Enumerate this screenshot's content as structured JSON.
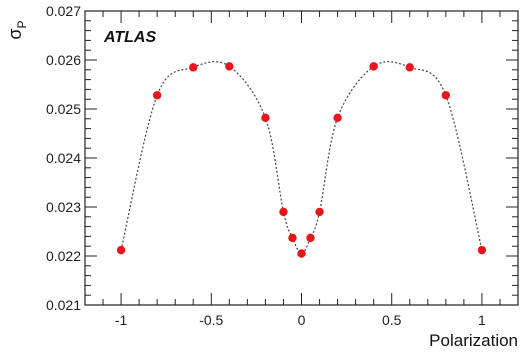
{
  "chart_data": {
    "type": "scatter",
    "title": "",
    "experiment_label": "ATLAS",
    "xlabel": "Polarization",
    "ylabel": {
      "symbol": "σ",
      "subscript": "P"
    },
    "xlim": [
      -1.2,
      1.2
    ],
    "ylim": [
      0.021,
      0.027
    ],
    "x_ticks": [
      -1,
      -0.5,
      0,
      0.5,
      1
    ],
    "x_tick_labels": [
      "-1",
      "-0.5",
      "0",
      "0.5",
      "1"
    ],
    "y_ticks": [
      0.021,
      0.022,
      0.023,
      0.024,
      0.025,
      0.026,
      0.027
    ],
    "y_tick_labels": [
      "0.021",
      "0.022",
      "0.023",
      "0.024",
      "0.025",
      "0.026",
      "0.027"
    ],
    "grid": false,
    "series": [
      {
        "x": [
          -1,
          -0.8,
          -0.6,
          -0.4,
          -0.2,
          -0.1,
          -0.05,
          0,
          0.05,
          0.1,
          0.2,
          0.4,
          0.6,
          0.8,
          1
        ],
        "y": [
          0.02212,
          0.02528,
          0.02585,
          0.02587,
          0.02482,
          0.0229,
          0.02237,
          0.02205,
          0.02237,
          0.0229,
          0.02482,
          0.02587,
          0.02585,
          0.02528,
          0.02212
        ],
        "marker_color": "#e8151b"
      }
    ],
    "fit_curve": {
      "style": "dotted",
      "color": "#444444"
    }
  }
}
